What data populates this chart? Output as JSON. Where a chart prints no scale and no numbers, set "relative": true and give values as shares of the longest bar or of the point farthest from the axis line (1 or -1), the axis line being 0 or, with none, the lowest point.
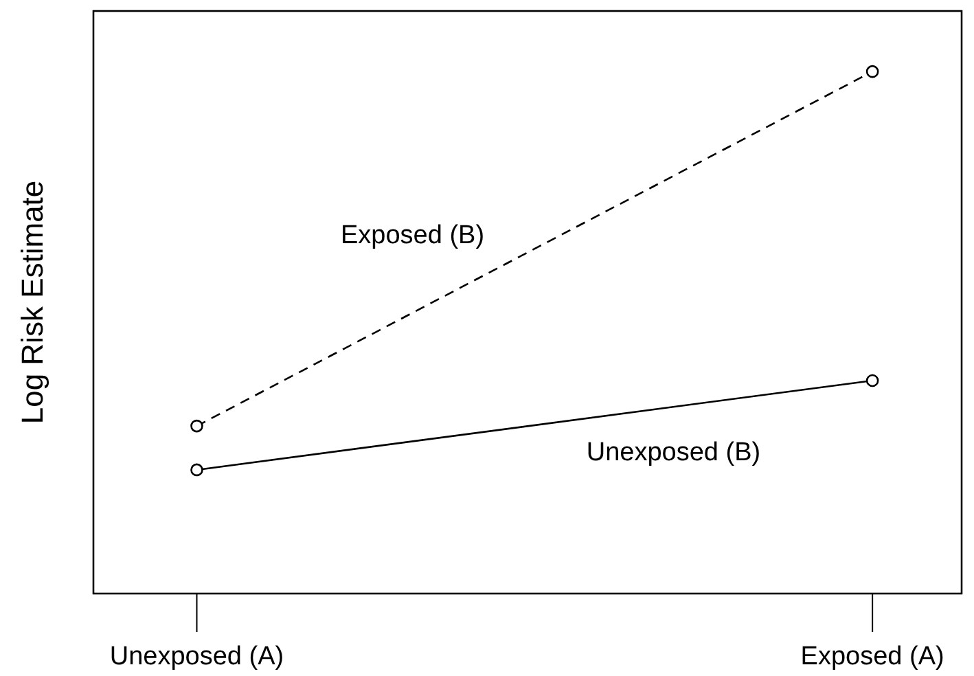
{
  "chart_data": {
    "type": "line",
    "relative": true,
    "ylabel": "Log Risk Estimate",
    "categories": [
      "Unexposed (A)",
      "Exposed (A)"
    ],
    "marker": "circle",
    "grid": false,
    "legend": false,
    "series": [
      {
        "name": "Exposed (B)",
        "color": "#000000",
        "line_style": "dashed",
        "values": [
          0.321,
          1
        ]
      },
      {
        "name": "Unexposed (B)",
        "color": "#000000",
        "line_style": "solid",
        "values": [
          0.237,
          0.408
        ]
      }
    ]
  }
}
